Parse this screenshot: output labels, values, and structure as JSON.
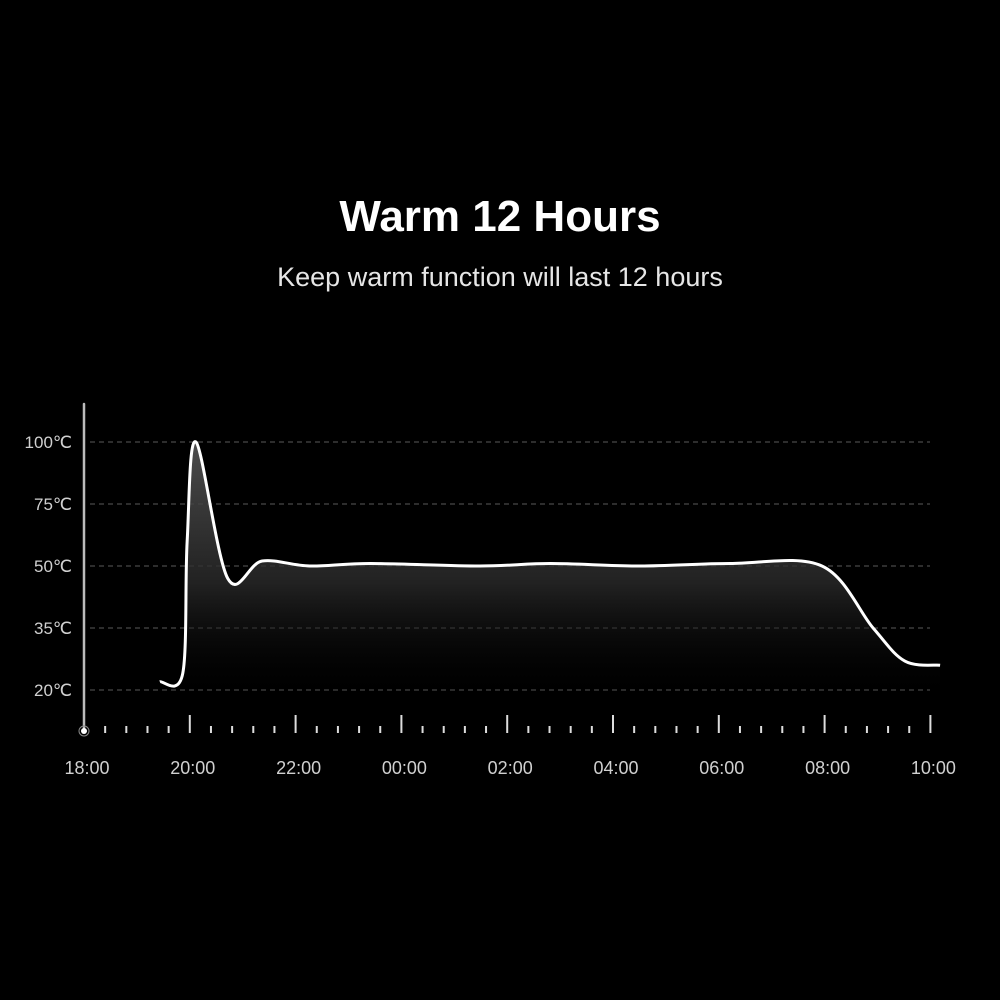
{
  "title": "Warm 12 Hours",
  "subtitle": "Keep warm function will last 12 hours",
  "chart_data": {
    "type": "area",
    "title": "Warm 12 Hours",
    "xlabel": "",
    "ylabel": "",
    "x_ticks": [
      "18:00",
      "20:00",
      "22:00",
      "00:00",
      "02:00",
      "04:00",
      "06:00",
      "08:00",
      "10:00"
    ],
    "y_ticks": [
      {
        "value": 100,
        "label": "100℃"
      },
      {
        "value": 75,
        "label": "75℃"
      },
      {
        "value": 50,
        "label": "50℃"
      },
      {
        "value": 35,
        "label": "35℃"
      },
      {
        "value": 20,
        "label": "20℃"
      }
    ],
    "grid": true,
    "series": [
      {
        "x": [
          "19:26",
          "19:52",
          "19:57",
          "20:07",
          "20:43",
          "21:22",
          "22:16",
          "23:25",
          "01:29",
          "02:49",
          "04:31",
          "06:13",
          "07:57",
          "08:55",
          "09:31",
          "10:11"
        ],
        "y": [
          22,
          24,
          60,
          100,
          47,
          52,
          50,
          51,
          50,
          51,
          50,
          51,
          50,
          35,
          27,
          26
        ]
      }
    ],
    "colors": {
      "line": "#ffffff",
      "grid": "#5a5a5a",
      "background": "#000000"
    }
  }
}
